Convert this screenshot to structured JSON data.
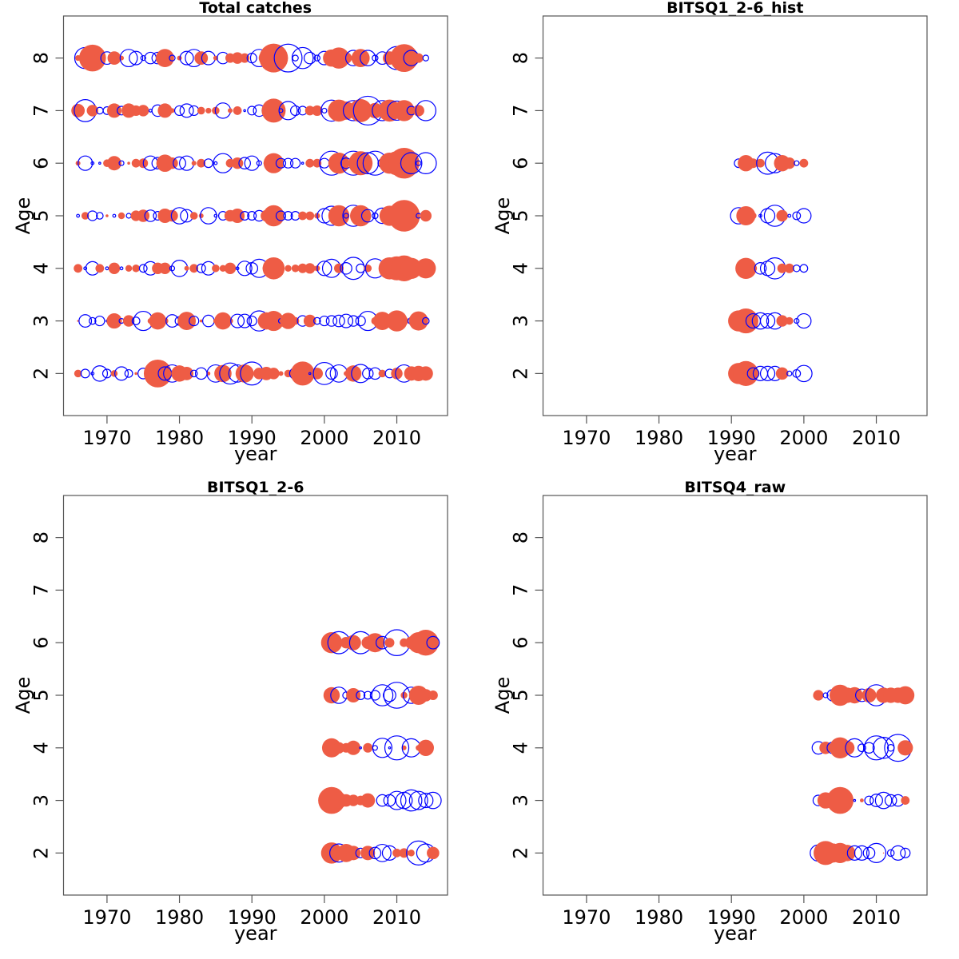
{
  "colors": {
    "positive": "#EE5C45",
    "negative": "#0000FF",
    "axis": "#000000",
    "box": "#555555"
  },
  "chart_data": [
    {
      "type": "scatter",
      "subtype": "bubble",
      "title": "Total catches",
      "xlabel": "year",
      "ylabel": "Age",
      "xlim": [
        1964,
        2017
      ],
      "ylim": [
        1.2,
        8.8
      ],
      "xticks": [
        1970,
        1980,
        1990,
        2000,
        2010
      ],
      "yticks": [
        2,
        3,
        4,
        5,
        6,
        7,
        8
      ],
      "encoding": "sign: positive = filled red, negative = open blue; bubble size ~ |value|",
      "rows": [
        {
          "age": 8,
          "start_year": 1966,
          "values": [
            0.6,
            -2.2,
            2.8,
            1.2,
            -1.3,
            1.4,
            0.5,
            -1.8,
            -1.4,
            -0.5,
            -1.2,
            -1.2,
            1.9,
            -0.6,
            0.5,
            -1.4,
            -1.8,
            1.4,
            -1.4,
            0.5,
            -1.2,
            1.0,
            1.2,
            1.0,
            -1.0,
            -1.8,
            1.6,
            3.0,
            1.0,
            -2.9,
            -0.6,
            -2.2,
            -1.2,
            -0.6,
            -1.4,
            1.8,
            2.2,
            1.2,
            -1.6,
            1.9,
            -1.6,
            -0.6,
            -1.3,
            1.4,
            -2.4,
            2.9,
            -1.6,
            1.0,
            -0.6
          ]
        },
        {
          "age": 7,
          "start_year": 1966,
          "values": [
            1.4,
            -2.3,
            1.2,
            -0.7,
            -0.8,
            1.5,
            -0.9,
            1.5,
            1.1,
            1.2,
            -0.3,
            -1.2,
            1.5,
            0.5,
            -1.0,
            -1.4,
            -1.0,
            0.8,
            0.6,
            0.8,
            -1.6,
            0.5,
            0.9,
            -0.2,
            -0.9,
            -1.2,
            -0.9,
            2.5,
            -0.4,
            -1.9,
            -1.0,
            -0.9,
            1.0,
            1.1,
            -0.5,
            -2.2,
            2.3,
            1.9,
            -2.1,
            2.4,
            -3.0,
            1.6,
            -2.1,
            2.3,
            -2.0,
            2.2,
            -0.9,
            1.2,
            -2.1
          ]
        },
        {
          "age": 6,
          "start_year": 1966,
          "values": [
            0.5,
            -1.5,
            -0.3,
            -0.2,
            0.8,
            1.5,
            -0.5,
            0.3,
            0.9,
            1.0,
            -1.5,
            -1.2,
            1.8,
            1.2,
            -1.3,
            -1.5,
            0.5,
            0.9,
            -0.9,
            -0.3,
            -2.0,
            0.9,
            1.2,
            -1.2,
            -1.5,
            -0.5,
            0.6,
            2.1,
            -1.0,
            -1.0,
            -1.0,
            -0.2,
            0.9,
            0.9,
            -1.0,
            -2.5,
            2.2,
            -1.1,
            -2.5,
            2.5,
            -2.2,
            -2.5,
            -0.9,
            2.2,
            2.5,
            3.2,
            -2.2,
            -0.5,
            -2.2
          ]
        },
        {
          "age": 5,
          "start_year": 1966,
          "values": [
            -0.3,
            0.8,
            -1.0,
            -0.7,
            0.3,
            -0.3,
            0.7,
            -0.5,
            1.1,
            1.3,
            -1.2,
            -0.9,
            1.5,
            1.2,
            -1.7,
            -1.3,
            0.8,
            0.5,
            -1.7,
            -0.3,
            -0.9,
            1.2,
            1.5,
            -0.9,
            -0.9,
            -1.1,
            1.2,
            2.2,
            -1.0,
            -0.9,
            -0.9,
            0.9,
            0.9,
            0.6,
            -1.5,
            -2.0,
            2.2,
            -0.5,
            -2.2,
            2.2,
            -1.3,
            -0.6,
            -1.6,
            2.1,
            -0.8,
            3.3,
            0.5,
            -0.5,
            1.2
          ]
        },
        {
          "age": 4,
          "start_year": 1966,
          "values": [
            0.9,
            -0.3,
            -1.4,
            0.9,
            -0.3,
            1.2,
            -0.3,
            0.7,
            0.8,
            -0.8,
            -1.4,
            1.2,
            1.2,
            -0.5,
            -1.7,
            0.5,
            0.9,
            -0.9,
            -1.4,
            0.8,
            0.7,
            1.2,
            -0.3,
            -1.5,
            -1.2,
            -1.9,
            0.8,
            2.3,
            0.5,
            0.7,
            0.8,
            1.0,
            1.1,
            0.6,
            -1.5,
            -1.9,
            1.0,
            -1.2,
            -2.3,
            -0.9,
            0.8,
            -2.0,
            0.6,
            2.3,
            2.5,
            2.7,
            2.2,
            0.8,
            2.1
          ]
        },
        {
          "age": 3,
          "start_year": 1966,
          "values": [
            0.2,
            -1.3,
            -0.7,
            -1.0,
            -0.2,
            1.6,
            -0.5,
            1.2,
            -0.8,
            -2.0,
            0.6,
            1.8,
            0.7,
            -1.3,
            -0.9,
            1.9,
            -1.0,
            0.3,
            -1.2,
            0.5,
            1.8,
            0.6,
            -1.4,
            -1.4,
            -1.0,
            -2.1,
            1.8,
            2.1,
            -0.5,
            1.7,
            0.8,
            -1.1,
            1.3,
            -0.7,
            -1.0,
            -1.1,
            -1.2,
            -1.4,
            -1.1,
            -1.0,
            -2.0,
            0.8,
            1.9,
            1.0,
            2.2,
            0.9,
            -0.7,
            2.0,
            -0.7
          ]
        },
        {
          "age": 2,
          "start_year": 1966,
          "values": [
            0.8,
            -0.9,
            -0.3,
            -1.6,
            -0.9,
            0.7,
            -1.4,
            -0.8,
            0.3,
            -1.1,
            0.7,
            2.9,
            -1.4,
            -1.8,
            1.7,
            1.4,
            -0.7,
            -1.2,
            0.4,
            -1.8,
            1.8,
            -2.2,
            -1.8,
            1.9,
            -2.4,
            1.2,
            1.4,
            1.2,
            0.5,
            0.8,
            -1.2,
            2.5,
            -0.2,
            1.2,
            -2.3,
            -1.2,
            -1.8,
            0.5,
            1.7,
            -1.9,
            -1.1,
            -1.2,
            0.8,
            -0.9,
            1.2,
            -1.8,
            1.5,
            1.6,
            1.5
          ]
        }
      ]
    },
    {
      "type": "scatter",
      "subtype": "bubble",
      "title": "BITSQ1_2-6_hist",
      "xlabel": "year",
      "ylabel": "Age",
      "xlim": [
        1964,
        2017
      ],
      "ylim": [
        1.2,
        8.8
      ],
      "xticks": [
        1970,
        1980,
        1990,
        2000,
        2010
      ],
      "yticks": [
        2,
        3,
        4,
        5,
        6,
        7,
        8
      ],
      "rows": [
        {
          "age": 6,
          "start_year": 1991,
          "values": [
            -0.9,
            1.7,
            1.0,
            0.9,
            -2.3,
            -2.0,
            1.7,
            1.2,
            -0.5,
            0.9
          ]
        },
        {
          "age": 5,
          "start_year": 1991,
          "values": [
            -1.7,
            2.0,
            0.7,
            -0.3,
            -1.5,
            -2.2,
            1.2,
            -0.3,
            -0.8,
            -1.5
          ]
        },
        {
          "age": 4,
          "start_year": 1991,
          "values": [
            -0.5,
            2.2,
            0.8,
            -1.2,
            -1.5,
            -2.2,
            1.0,
            1.0,
            -0.7,
            -0.8
          ]
        },
        {
          "age": 3,
          "start_year": 1991,
          "values": [
            2.2,
            2.6,
            -1.5,
            -1.7,
            -1.5,
            -1.7,
            1.2,
            0.8,
            -0.5,
            -1.5
          ]
        },
        {
          "age": 2,
          "start_year": 1991,
          "values": [
            2.2,
            2.6,
            -1.2,
            -1.5,
            -1.5,
            -1.5,
            1.3,
            -0.5,
            -0.8,
            -1.7
          ]
        }
      ]
    },
    {
      "type": "scatter",
      "subtype": "bubble",
      "title": "BITSQ1_2-6",
      "xlabel": "year",
      "ylabel": "Age",
      "xlim": [
        1964,
        2017
      ],
      "ylim": [
        1.2,
        8.8
      ],
      "xticks": [
        1970,
        1980,
        1990,
        2000,
        2010
      ],
      "yticks": [
        2,
        3,
        4,
        5,
        6,
        7,
        8
      ],
      "rows": [
        {
          "age": 6,
          "start_year": 2001,
          "values": [
            2.2,
            -2.3,
            1.2,
            1.6,
            -2.3,
            1.3,
            2.0,
            -1.3,
            1.0,
            -2.7,
            0.9,
            1.3,
            2.2,
            2.7,
            -1.3
          ]
        },
        {
          "age": 5,
          "start_year": 2001,
          "values": [
            1.7,
            -1.7,
            -0.7,
            1.5,
            -0.9,
            -0.8,
            -1.0,
            -2.2,
            -1.3,
            -2.7,
            0.7,
            -1.7,
            2.0,
            1.3,
            1.0
          ]
        },
        {
          "age": 4,
          "start_year": 2001,
          "values": [
            2.0,
            1.2,
            1.0,
            1.5,
            -0.2,
            1.0,
            -0.5,
            -2.0,
            -0.2,
            -2.5,
            0.5,
            -1.9,
            0.6,
            1.7,
            null
          ]
        },
        {
          "age": 3,
          "start_year": 2001,
          "values": [
            2.8,
            1.7,
            1.3,
            1.2,
            1.0,
            1.5,
            null,
            -1.2,
            -1.2,
            -1.9,
            -1.7,
            -2.2,
            -1.9,
            -1.5,
            -1.7
          ]
        },
        {
          "age": 2,
          "start_year": 2001,
          "values": [
            2.2,
            -1.9,
            1.9,
            1.5,
            -1.0,
            1.5,
            -1.2,
            -1.8,
            -1.5,
            0.9,
            1.0,
            0.7,
            -2.5,
            -1.9,
            1.3
          ]
        }
      ]
    },
    {
      "type": "scatter",
      "subtype": "bubble",
      "title": "BITSQ4_raw",
      "xlabel": "year",
      "ylabel": "Age",
      "xlim": [
        1964,
        2017
      ],
      "ylim": [
        1.2,
        8.8
      ],
      "xticks": [
        1970,
        1980,
        1990,
        2000,
        2010
      ],
      "yticks": [
        2,
        3,
        4,
        5,
        6,
        7,
        8
      ],
      "rows": [
        {
          "age": 5,
          "start_year": 2002,
          "values": [
            1.1,
            -0.5,
            -1.2,
            2.2,
            1.6,
            1.7,
            -1.3,
            1.5,
            -2.2,
            1.6,
            1.6,
            1.6,
            1.9
          ]
        },
        {
          "age": 4,
          "start_year": 2002,
          "values": [
            -1.3,
            1.3,
            -1.2,
            2.2,
            1.5,
            -1.9,
            -0.8,
            -1.1,
            -2.5,
            -2.2,
            -0.7,
            -2.8,
            1.6
          ]
        },
        {
          "age": 3,
          "start_year": 2002,
          "values": [
            -1.1,
            1.7,
            1.5,
            2.8,
            null,
            -0.2,
            0.4,
            -0.9,
            -1.3,
            -1.7,
            -1.2,
            -1.2,
            0.9
          ]
        },
        {
          "age": 2,
          "start_year": 2002,
          "values": [
            -1.7,
            2.5,
            2.0,
            2.1,
            1.7,
            -1.5,
            -1.5,
            -1.2,
            -2.0,
            0.1,
            -0.7,
            -1.5,
            -1.0
          ]
        }
      ]
    }
  ]
}
